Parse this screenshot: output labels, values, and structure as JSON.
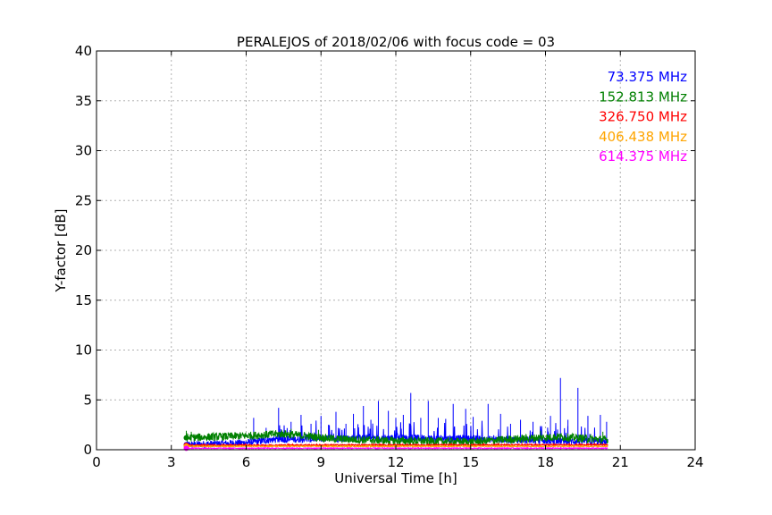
{
  "chart_data": {
    "type": "line",
    "title": "PERALEJOS of 2018/02/06 with focus code = 03",
    "xlabel": "Universal Time [h]",
    "ylabel": "Y-factor [dB]",
    "xlim": [
      0,
      24
    ],
    "ylim": [
      0,
      40
    ],
    "xticks": [
      0,
      3,
      6,
      9,
      12,
      15,
      18,
      21,
      24
    ],
    "yticks": [
      0,
      5,
      10,
      15,
      20,
      25,
      30,
      35,
      40
    ],
    "grid": true,
    "legend_position": "top-right",
    "series": [
      {
        "name": "73.375 MHz",
        "color": "#0000ff",
        "x_range": [
          3.6,
          20.5
        ],
        "baseline": [
          [
            3.6,
            0.5
          ],
          [
            6.0,
            0.7
          ],
          [
            7.0,
            1.0
          ],
          [
            9.0,
            1.1
          ],
          [
            12.0,
            1.2
          ],
          [
            15.0,
            1.1
          ],
          [
            18.0,
            0.9
          ],
          [
            20.5,
            0.8
          ]
        ],
        "noise": 0.35,
        "spikes": [
          [
            6.3,
            3.2
          ],
          [
            6.8,
            2.2
          ],
          [
            7.3,
            4.2
          ],
          [
            7.8,
            2.8
          ],
          [
            8.2,
            3.5
          ],
          [
            8.6,
            2.6
          ],
          [
            9.0,
            3.4
          ],
          [
            9.3,
            2.5
          ],
          [
            9.6,
            3.8
          ],
          [
            10.0,
            2.6
          ],
          [
            10.3,
            3.6
          ],
          [
            10.7,
            4.4
          ],
          [
            11.0,
            3.0
          ],
          [
            11.3,
            4.9
          ],
          [
            11.7,
            3.9
          ],
          [
            12.0,
            3.2
          ],
          [
            12.3,
            3.5
          ],
          [
            12.6,
            5.7
          ],
          [
            13.0,
            3.2
          ],
          [
            13.3,
            4.9
          ],
          [
            13.7,
            3.2
          ],
          [
            14.0,
            3.1
          ],
          [
            14.3,
            4.6
          ],
          [
            14.8,
            4.1
          ],
          [
            15.1,
            3.3
          ],
          [
            15.7,
            4.6
          ],
          [
            16.2,
            3.6
          ],
          [
            16.6,
            2.6
          ],
          [
            17.0,
            3.0
          ],
          [
            17.5,
            2.8
          ],
          [
            18.2,
            3.4
          ],
          [
            18.6,
            7.2
          ],
          [
            18.9,
            3.0
          ],
          [
            19.3,
            6.2
          ],
          [
            19.7,
            3.4
          ],
          [
            20.2,
            3.5
          ],
          [
            20.45,
            2.8
          ]
        ]
      },
      {
        "name": "152.813 MHz",
        "color": "#008000",
        "x_range": [
          3.6,
          20.5
        ],
        "baseline": [
          [
            3.6,
            1.2
          ],
          [
            6.0,
            1.4
          ],
          [
            7.5,
            1.6
          ],
          [
            9.5,
            1.1
          ],
          [
            12.0,
            0.9
          ],
          [
            15.0,
            0.8
          ],
          [
            17.0,
            1.1
          ],
          [
            18.5,
            1.3
          ],
          [
            20.5,
            1.0
          ]
        ],
        "noise": 0.4,
        "spikes": [
          [
            3.6,
            1.9
          ],
          [
            3.8,
            1.8
          ],
          [
            7.8,
            2.1
          ],
          [
            8.9,
            2.0
          ],
          [
            17.8,
            1.9
          ],
          [
            20.3,
            1.8
          ]
        ]
      },
      {
        "name": "326.750 MHz",
        "color": "#ff0000",
        "x_range": [
          3.6,
          20.5
        ],
        "baseline": [
          [
            3.6,
            0.45
          ],
          [
            20.5,
            0.5
          ]
        ],
        "noise": 0.07,
        "spikes": []
      },
      {
        "name": "406.438 MHz",
        "color": "#ffa500",
        "x_range": [
          3.6,
          20.5
        ],
        "baseline": [
          [
            3.6,
            0.35
          ],
          [
            20.5,
            0.35
          ]
        ],
        "noise": 0.05,
        "spikes": []
      },
      {
        "name": "614.375 MHz",
        "color": "#ff00ff",
        "x_range": [
          3.6,
          20.5
        ],
        "baseline": [
          [
            3.6,
            0.15
          ],
          [
            20.5,
            0.15
          ]
        ],
        "noise": 0.05,
        "spikes": []
      }
    ]
  }
}
